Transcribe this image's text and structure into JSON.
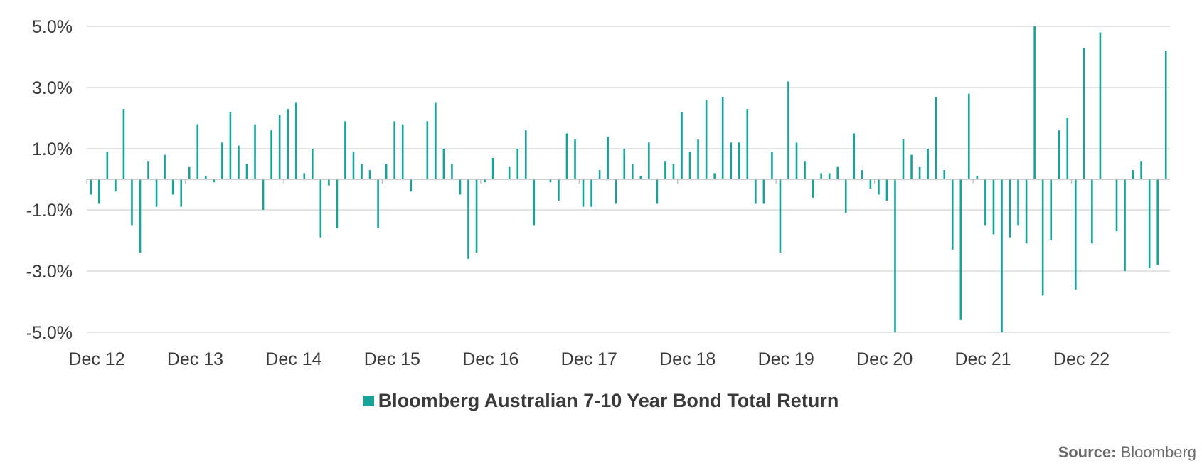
{
  "chart_data": {
    "type": "bar",
    "title": "",
    "xlabel": "",
    "ylabel": "",
    "ylim": [
      -5.0,
      5.0
    ],
    "yticks": [
      {
        "value": 5.0,
        "label": "5.0%"
      },
      {
        "value": 3.0,
        "label": "3.0%"
      },
      {
        "value": 1.0,
        "label": "1.0%"
      },
      {
        "value": -1.0,
        "label": "-1.0%"
      },
      {
        "value": -3.0,
        "label": "-3.0%"
      },
      {
        "value": -5.0,
        "label": "-5.0%"
      }
    ],
    "xticks": [
      {
        "index": 0,
        "label": "Dec 12"
      },
      {
        "index": 12,
        "label": "Dec 13"
      },
      {
        "index": 24,
        "label": "Dec 14"
      },
      {
        "index": 36,
        "label": "Dec 15"
      },
      {
        "index": 48,
        "label": "Dec 16"
      },
      {
        "index": 60,
        "label": "Dec 17"
      },
      {
        "index": 72,
        "label": "Dec 18"
      },
      {
        "index": 84,
        "label": "Dec 19"
      },
      {
        "index": 96,
        "label": "Dec 20"
      },
      {
        "index": 108,
        "label": "Dec 21"
      },
      {
        "index": 120,
        "label": "Dec 22"
      }
    ],
    "grid": true,
    "series": [
      {
        "name": "Bloomberg Australian 7-10 Year Bond Total Return",
        "color": "#16a398",
        "values": [
          -0.5,
          -0.8,
          0.9,
          -0.4,
          2.3,
          -1.5,
          -2.4,
          0.6,
          -0.9,
          0.8,
          -0.5,
          -0.9,
          0.4,
          1.8,
          0.1,
          -0.1,
          1.2,
          2.2,
          1.1,
          0.5,
          1.8,
          -1.0,
          1.6,
          2.1,
          2.3,
          2.5,
          0.2,
          1.0,
          -1.9,
          -0.2,
          -1.6,
          1.9,
          0.9,
          0.5,
          0.3,
          -1.6,
          0.5,
          1.9,
          1.8,
          -0.4,
          0.0,
          1.9,
          2.5,
          1.0,
          0.5,
          -0.5,
          -2.6,
          -2.4,
          -0.1,
          0.7,
          0.0,
          0.4,
          1.0,
          1.6,
          -1.5,
          0.0,
          -0.1,
          -0.7,
          1.5,
          1.3,
          -0.9,
          -0.9,
          0.3,
          1.4,
          -0.8,
          1.0,
          0.5,
          0.1,
          1.2,
          -0.8,
          0.6,
          0.5,
          2.2,
          0.9,
          1.3,
          2.6,
          0.2,
          2.7,
          1.2,
          1.2,
          2.3,
          -0.8,
          -0.8,
          0.9,
          -2.4,
          3.2,
          1.2,
          0.6,
          -0.6,
          0.2,
          0.2,
          0.4,
          -1.1,
          1.5,
          0.3,
          -0.3,
          -0.5,
          -0.7,
          -5.0,
          1.3,
          0.8,
          0.4,
          1.0,
          2.7,
          0.3,
          -2.3,
          -4.6,
          2.8,
          0.1,
          -1.5,
          -1.8,
          -5.0,
          -1.9,
          -1.5,
          -2.1,
          5.0,
          -3.8,
          -2.0,
          1.6,
          2.0,
          -3.6,
          4.3,
          -2.1,
          4.8,
          0.0,
          -1.7,
          -3.0,
          0.3,
          0.6,
          -2.9,
          -2.8,
          4.2
        ]
      }
    ]
  },
  "legend": {
    "label": "Bloomberg Australian 7-10 Year Bond Total Return",
    "color": "#16a398"
  },
  "source": {
    "prefix": "Source:",
    "text": "Bloomberg"
  }
}
